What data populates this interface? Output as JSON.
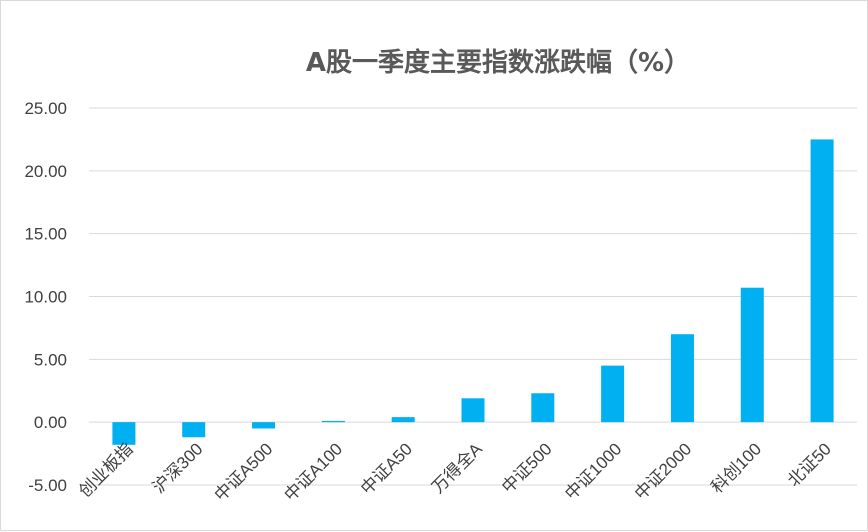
{
  "chart_data": {
    "type": "bar",
    "title": "A股一季度主要指数涨跌幅（%）",
    "categories": [
      "创业板指",
      "沪深300",
      "中证A500",
      "中证A100",
      "中证A50",
      "万得全A",
      "中证500",
      "中证1000",
      "中证2000",
      "科创100",
      "北证50"
    ],
    "values": [
      -1.8,
      -1.2,
      -0.5,
      0.1,
      0.4,
      1.9,
      2.3,
      4.5,
      7.0,
      10.7,
      22.5
    ],
    "ylim": [
      -5,
      25
    ],
    "yticks": [
      "25.00",
      "20.00",
      "15.00",
      "10.00",
      "5.00",
      "0.00",
      "-5.00"
    ],
    "grid": true,
    "legend": "none",
    "bar_color": "#00b0f0",
    "grid_color": "#d9d9d9"
  }
}
